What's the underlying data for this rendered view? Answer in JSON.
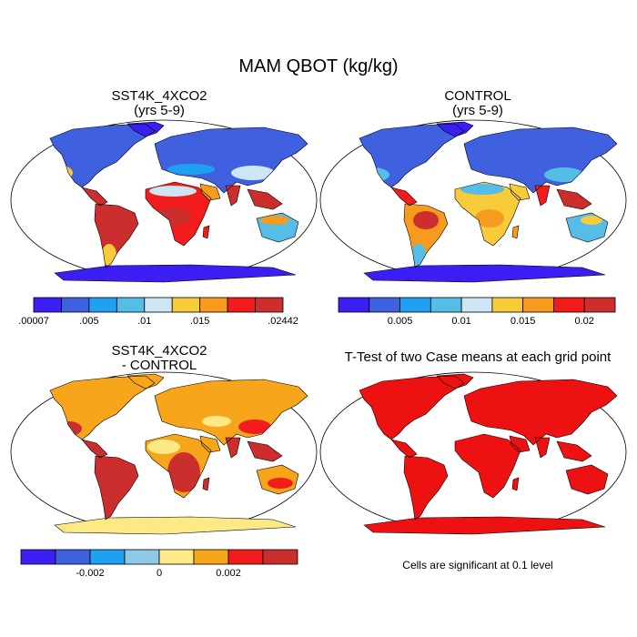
{
  "figure": {
    "title": "MAM QBOT (kg/kg)",
    "note": "Cells are significant at 0.1 level"
  },
  "panels": {
    "p1": {
      "title_line1": "SST4K_4XCO2",
      "title_line2": "(yrs 5-9)"
    },
    "p2": {
      "title_line1": "CONTROL",
      "title_line2": "(yrs 5-9)"
    },
    "p3": {
      "title_line1": "SST4K_4XCO2",
      "title_line2": "- CONTROL"
    },
    "p4": {
      "title_line1": "T-Test of two Case means at each grid point"
    }
  },
  "colors": {
    "land_outline": "#000000",
    "ocean": "#ffffff",
    "ttest_fill": "#ee1111",
    "seq": [
      "#3b1ff2",
      "#3f61e0",
      "#1fa0f0",
      "#55bde6",
      "#cde6f3",
      "#f7cb3a",
      "#f79b1e",
      "#f21c1c",
      "#cc2e2e"
    ],
    "div": [
      "#3b1ff2",
      "#3f61e0",
      "#1fa0f0",
      "#8ec9e8",
      "#fde985",
      "#f7a51b",
      "#f21c1c",
      "#cc2e2e"
    ]
  },
  "colorbars": {
    "cb1": {
      "labels": [
        ".00007",
        ".005",
        ".01",
        ".015",
        ".02442"
      ]
    },
    "cb2": {
      "labels": [
        "0.005",
        "0.01",
        "0.015",
        "0.02"
      ]
    },
    "cb3": {
      "labels": [
        "-0.002",
        "0",
        "0.002"
      ]
    }
  }
}
